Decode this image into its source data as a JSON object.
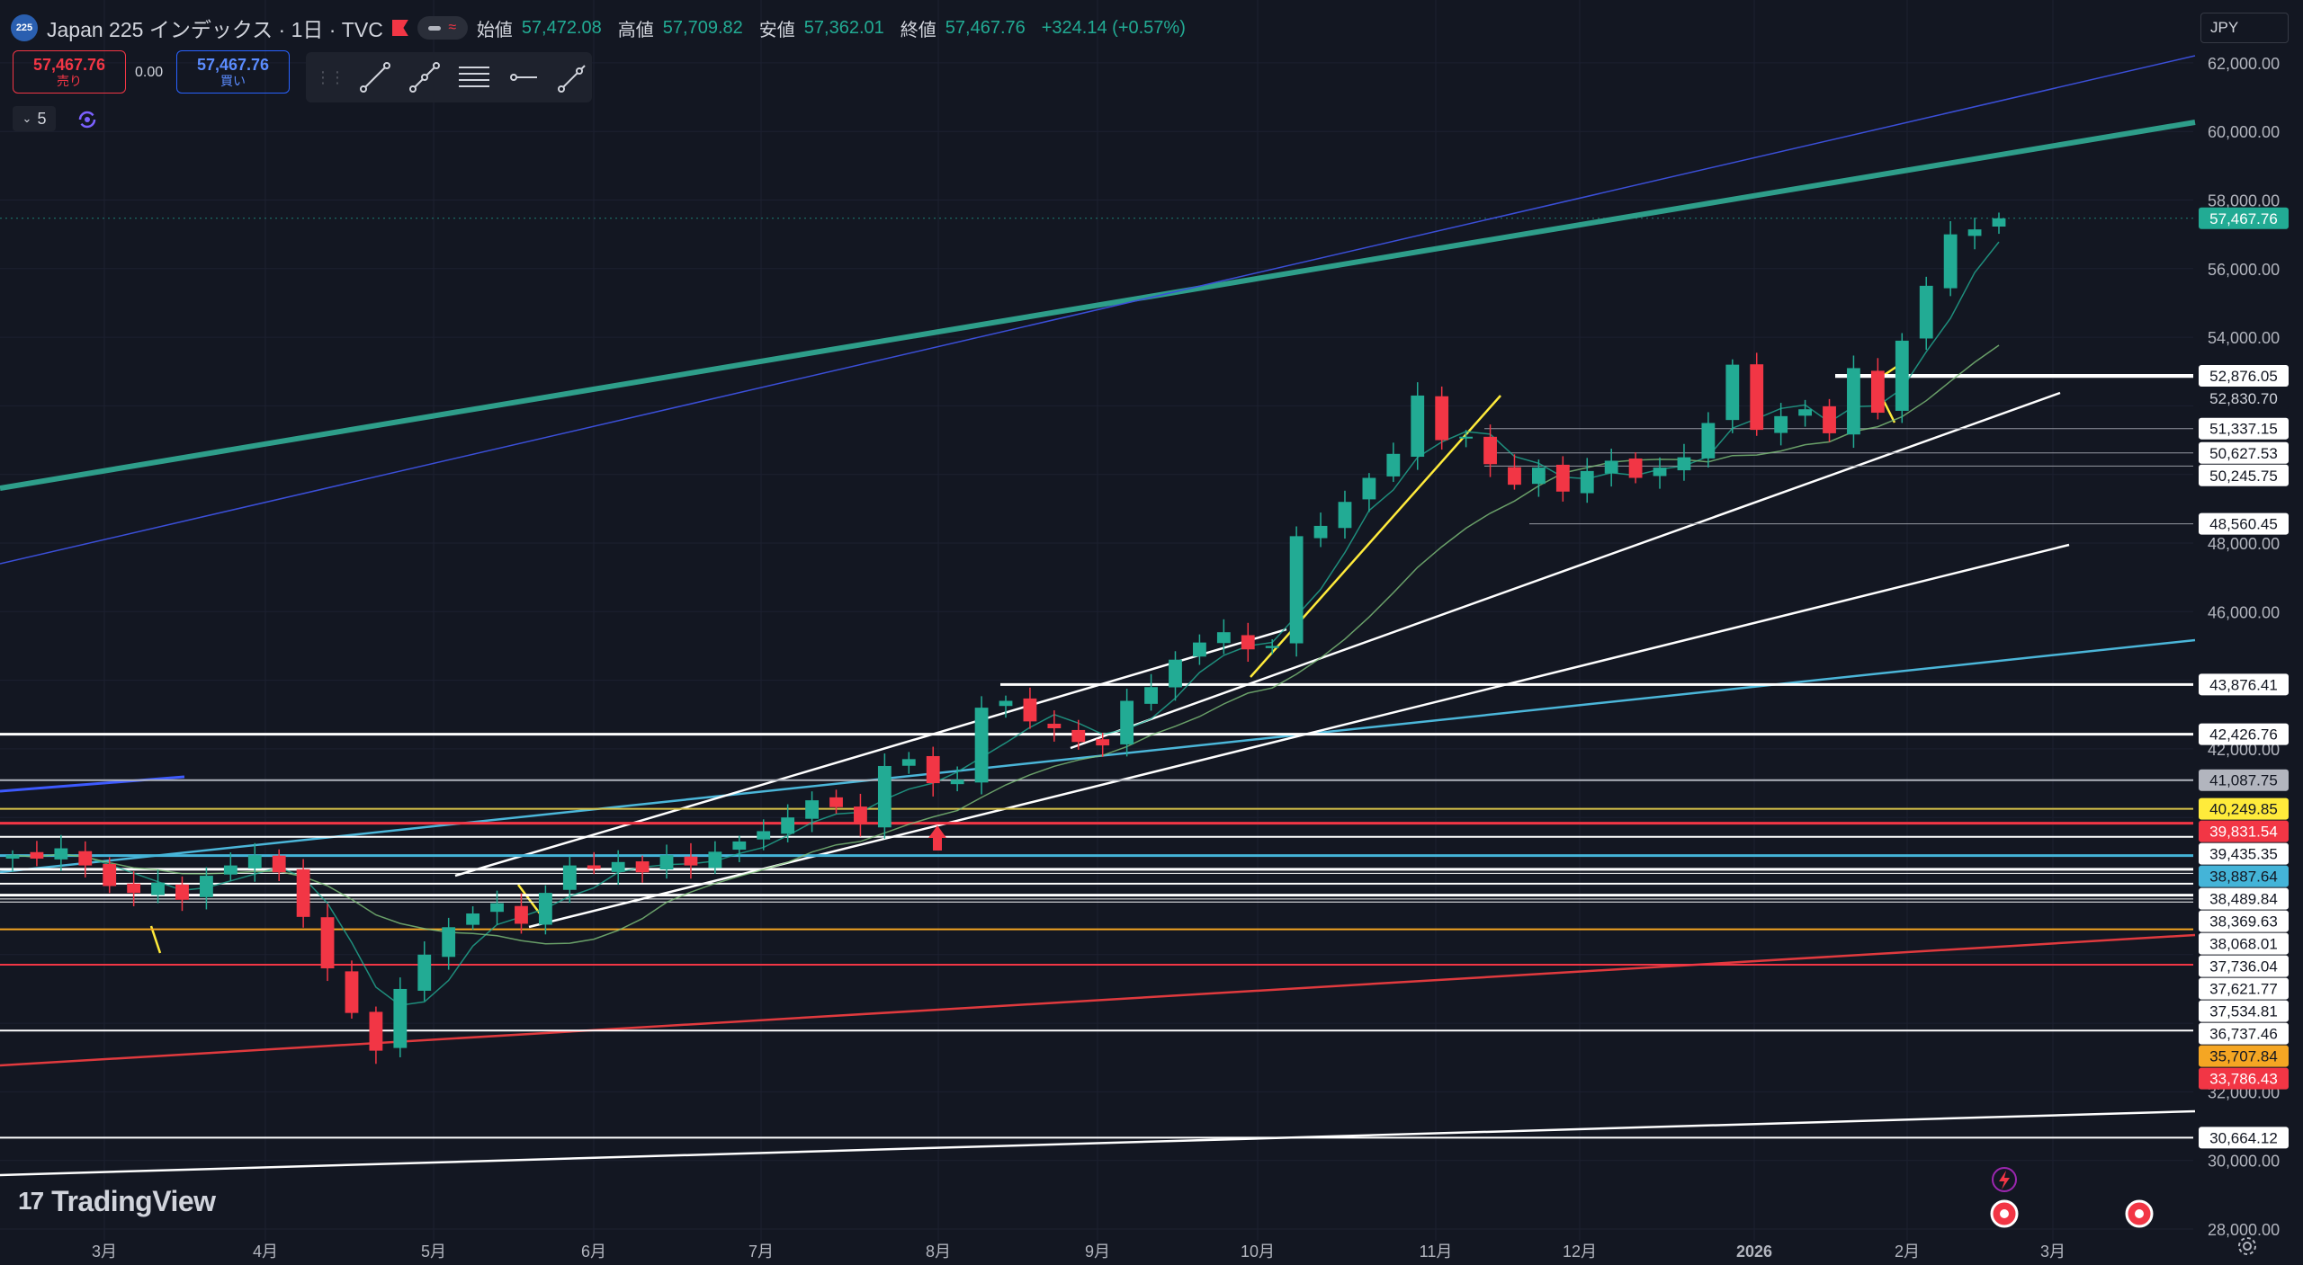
{
  "header": {
    "symbol_badge": "225",
    "title": "Japan 225 インデックス · 1日 · TVC",
    "labels": {
      "open": "始値",
      "high": "高値",
      "low": "安値",
      "close": "終値"
    },
    "values": {
      "open": "57,472.08",
      "high": "57,709.82",
      "low": "57,362.01",
      "close": "57,467.76",
      "change": "+324.14 (+0.57%)"
    }
  },
  "trade": {
    "sell_price": "57,467.76",
    "sell_label": "売り",
    "spread": "0.00",
    "buy_price": "57,467.76",
    "buy_label": "買い"
  },
  "indicator": {
    "count": "5"
  },
  "currency": "JPY",
  "logo": {
    "mark": "17",
    "text": "TradingView"
  },
  "colors": {
    "bg": "#131722",
    "up": "#22ab94",
    "down": "#f23645",
    "grid": "#1f2330"
  },
  "icons": [
    "line-tool-icon",
    "path-tool-icon",
    "fib-tool-icon",
    "hline-tool-icon",
    "ray-tool-icon",
    "sync-icon",
    "alert-icon",
    "replay-icon",
    "settings-icon"
  ],
  "chart_data": {
    "type": "candlestick",
    "x_axis": {
      "labels": [
        "3月",
        "4月",
        "5月",
        "6月",
        "7月",
        "8月",
        "9月",
        "10月",
        "11月",
        "12月",
        "2026",
        "2月",
        "3月"
      ]
    },
    "y_axis": {
      "ylim": [
        28000,
        63000
      ],
      "ticks": [
        62000,
        60000,
        58000,
        56000,
        54000,
        48000,
        46000,
        42000,
        32000,
        30000,
        28000
      ],
      "tick_labels": [
        "62,000.00",
        "60,000.00",
        "58,000.00",
        "56,000.00",
        "54,000.00",
        "48,000.00",
        "46,000.00",
        "42,000.00",
        "32,000.00",
        "30,000.00",
        "28,000.00"
      ]
    },
    "last_price": {
      "value": 57467.76,
      "label": "57,467.76",
      "color": "#22ab94"
    },
    "closes": [
      38900,
      38800,
      39100,
      38600,
      38000,
      37800,
      38100,
      37600,
      38300,
      38600,
      38900,
      38400,
      37100,
      35600,
      34300,
      33200,
      35000,
      36000,
      36800,
      37200,
      37500,
      36900,
      37800,
      38600,
      38500,
      38700,
      38400,
      38900,
      38600,
      39000,
      39300,
      39600,
      40000,
      40500,
      40300,
      39800,
      41500,
      41700,
      41000,
      41100,
      43200,
      43400,
      42800,
      42600,
      42200,
      42100,
      43400,
      43800,
      44600,
      45100,
      45400,
      44900,
      45000,
      48200,
      48500,
      49200,
      49900,
      50600,
      52300,
      51000,
      51100,
      50300,
      49700,
      50200,
      49500,
      50100,
      50400,
      49900,
      50200,
      50500,
      51500,
      53200,
      51300,
      51700,
      51900,
      51200,
      53100,
      51800,
      53900,
      55500,
      57000,
      57144,
      57468
    ],
    "horizontal_levels": [
      {
        "value": 52876.05,
        "label": "52,876.05",
        "label_bg": "#ffffff",
        "label_fg": "#131722",
        "line": "#ffffff",
        "width": 4
      },
      {
        "value": 52830.7,
        "label": "52,830.70",
        "label_bg": "#131722",
        "label_fg": "#d1d4dc",
        "line": "#ffffff",
        "width": 1
      },
      {
        "value": 51337.15,
        "label": "51,337.15",
        "label_bg": "#ffffff",
        "label_fg": "#131722",
        "line": "#9598a1",
        "width": 1
      },
      {
        "value": 50627.53,
        "label": "50,627.53",
        "label_bg": "#ffffff",
        "label_fg": "#131722",
        "line": "#9598a1",
        "width": 1
      },
      {
        "value": 50245.75,
        "label": "50,245.75",
        "label_bg": "#ffffff",
        "label_fg": "#131722",
        "line": "#9598a1",
        "width": 1
      },
      {
        "value": 48560.45,
        "label": "48,560.45",
        "label_bg": "#ffffff",
        "label_fg": "#131722",
        "line": "#9598a1",
        "width": 1
      },
      {
        "value": 43876.41,
        "label": "43,876.41",
        "label_bg": "#ffffff",
        "label_fg": "#131722",
        "line": "#ffffff",
        "width": 3
      },
      {
        "value": 42426.76,
        "label": "42,426.76",
        "label_bg": "#ffffff",
        "label_fg": "#131722",
        "line": "#ffffff",
        "width": 3
      },
      {
        "value": 41087.75,
        "label": "41,087.75",
        "label_bg": "#b2b5be",
        "label_fg": "#131722",
        "line": "#b2b5be",
        "width": 2
      },
      {
        "value": 40249.85,
        "label": "40,249.85",
        "label_bg": "#ffeb3b",
        "label_fg": "#131722",
        "line": "#d8c34a",
        "width": 2
      },
      {
        "value": 39831.54,
        "label": "39,831.54",
        "label_bg": "#f23645",
        "label_fg": "#ffffff",
        "line": "#f23645",
        "width": 3
      },
      {
        "value": 39435.35,
        "label": "39,435.35",
        "label_bg": "#ffffff",
        "label_fg": "#131722",
        "line": "#ffffff",
        "width": 2
      },
      {
        "value": 38887.64,
        "label": "38,887.64",
        "label_bg": "#44b4d8",
        "label_fg": "#131722",
        "line": "#44b4d8",
        "width": 3
      },
      {
        "value": 38489.84,
        "label": "38,489.84",
        "label_bg": "#ffffff",
        "label_fg": "#131722",
        "line": "#ffffff",
        "width": 3
      },
      {
        "value": 38369.63,
        "label": "38,369.63",
        "label_bg": "#ffffff",
        "label_fg": "#131722",
        "line": "#ffffff",
        "width": 1
      },
      {
        "value": 38068.01,
        "label": "38,068.01",
        "label_bg": "#ffffff",
        "label_fg": "#131722",
        "line": "#ffffff",
        "width": 2
      },
      {
        "value": 37736.04,
        "label": "37,736.04",
        "label_bg": "#ffffff",
        "label_fg": "#131722",
        "line": "#ffffff",
        "width": 3
      },
      {
        "value": 37621.77,
        "label": "37,621.77",
        "label_bg": "#ffffff",
        "label_fg": "#131722",
        "line": "#ffffff",
        "width": 1
      },
      {
        "value": 37534.81,
        "label": "37,534.81",
        "label_bg": "#ffffff",
        "label_fg": "#131722",
        "line": "#ffffff",
        "width": 1
      },
      {
        "value": 36737.46,
        "label": "36,737.46",
        "label_bg": "#ffffff",
        "label_fg": "#131722",
        "line": "#f5a623",
        "width": 2
      },
      {
        "value": 35707.84,
        "label": "35,707.84",
        "label_bg": "#f5a623",
        "label_fg": "#131722",
        "line": "#f23645",
        "width": 2
      },
      {
        "value": 33786.43,
        "label": "33,786.43",
        "label_bg": "#f23645",
        "label_fg": "#ffffff",
        "line": "#ffffff",
        "width": 2
      },
      {
        "value": 30664.12,
        "label": "30,664.12",
        "label_bg": "#ffffff",
        "label_fg": "#131722",
        "line": "#ffffff",
        "width": 2
      }
    ]
  }
}
